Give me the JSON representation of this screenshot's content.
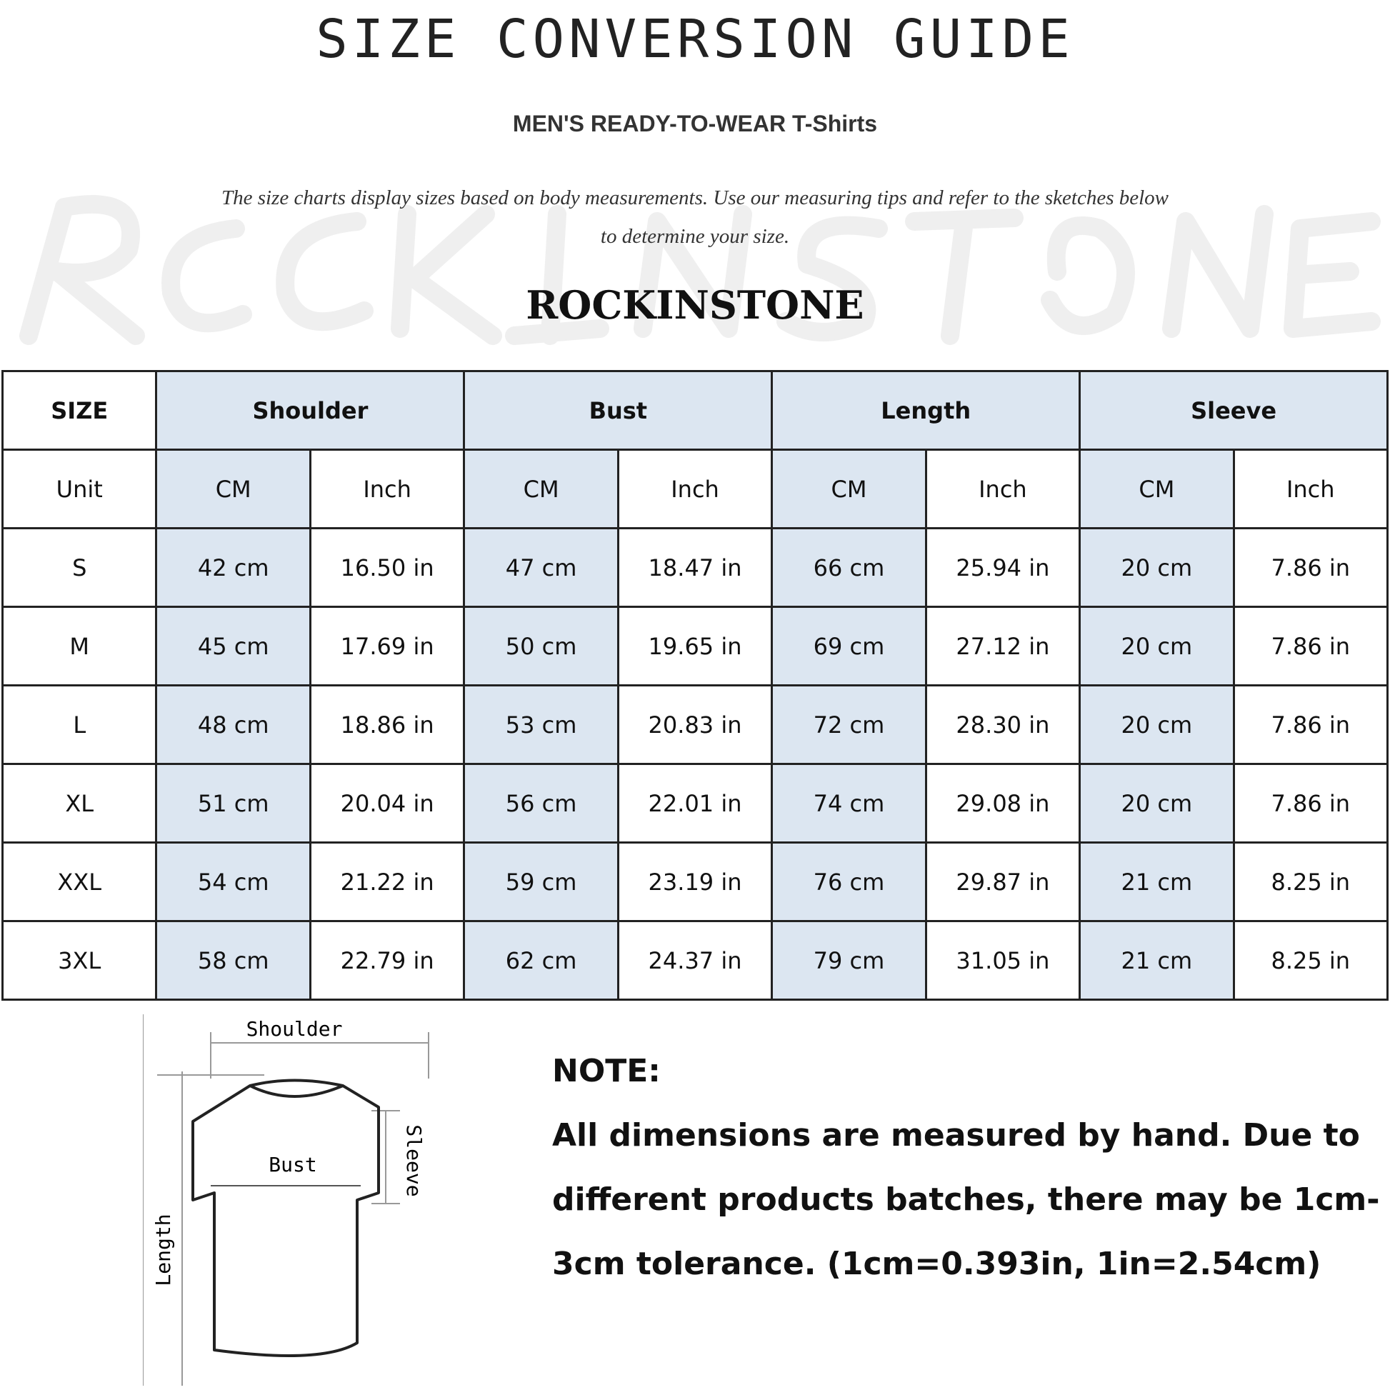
{
  "title": "SIZE CONVERSION GUIDE",
  "subtitle": "MEN'S READY-TO-WEAR T-Shirts",
  "description": "The size charts display sizes based on body measurements. Use our measuring tips and refer to the sketches below to determine your size.",
  "watermark": "ROCKINSTONE",
  "brand": "ROCKINSTONE",
  "table": {
    "headers": [
      "SIZE",
      "Shoulder",
      "Bust",
      "Length",
      "Sleeve"
    ],
    "units": [
      "Unit",
      "CM",
      "Inch",
      "CM",
      "Inch",
      "CM",
      "Inch",
      "CM",
      "Inch"
    ],
    "rows": [
      [
        "S",
        "42 cm",
        "16.50 in",
        "47 cm",
        "18.47  in",
        "66 cm",
        "25.94  in",
        "20 cm",
        "7.86  in"
      ],
      [
        "M",
        "45 cm",
        "17.69  in",
        "50 cm",
        "19.65  in",
        "69 cm",
        "27.12  in",
        "20 cm",
        "7.86  in"
      ],
      [
        "L",
        "48 cm",
        "18.86  in",
        "53 cm",
        "20.83  in",
        "72 cm",
        "28.30  in",
        "20 cm",
        "7.86  in"
      ],
      [
        "XL",
        "51 cm",
        "20.04  in",
        "56 cm",
        "22.01  in",
        "74 cm",
        "29.08  in",
        "20 cm",
        "7.86  in"
      ],
      [
        "XXL",
        "54 cm",
        "21.22  in",
        "59 cm",
        "23.19  in",
        "76 cm",
        "29.87  in",
        "21 cm",
        "8.25  in"
      ],
      [
        "3XL",
        "58 cm",
        "22.79  in",
        "62 cm",
        "24.37  in",
        "79 cm",
        "31.05  in",
        "21 cm",
        "8.25  in"
      ]
    ]
  },
  "sketch": {
    "shoulder": "Shoulder",
    "bust": "Bust",
    "length": "Length",
    "sleeve": "Sleeve"
  },
  "note": {
    "heading": "NOTE:",
    "text": "All dimensions are measured by hand. Due to different products batches, there may be 1cm-3cm tolerance. (1cm=0.393in, 1in=2.54cm)"
  },
  "colors": {
    "header_fill": "#dce6f1",
    "border": "#222222"
  }
}
